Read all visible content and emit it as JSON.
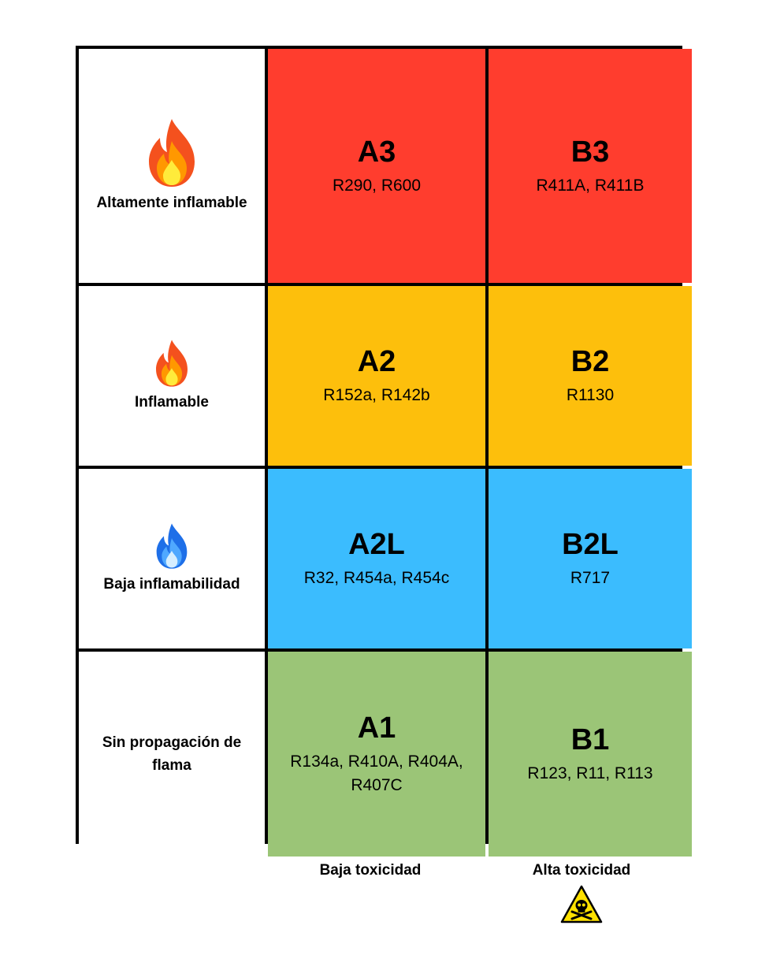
{
  "rows": [
    {
      "label": "Altamente inflamable",
      "icon": "fire-icon-large",
      "cells": [
        {
          "code": "A3",
          "refs": "R290,  R600",
          "color": "#FF3D2E"
        },
        {
          "code": "B3",
          "refs": "R411A, R411B",
          "color": "#FF3D2E"
        }
      ]
    },
    {
      "label": "Inflamable",
      "icon": "fire-icon-small",
      "cells": [
        {
          "code": "A2",
          "refs": "R152a, R142b",
          "color": "#FDBF0C"
        },
        {
          "code": "B2",
          "refs": "R1130",
          "color": "#FDBF0C"
        }
      ]
    },
    {
      "label": "Baja inflamabilidad",
      "icon": "blue-fire-icon",
      "cells": [
        {
          "code": "A2L",
          "refs": "R32, R454a, R454c",
          "color": "#3BBCFE"
        },
        {
          "code": "B2L",
          "refs": "R717",
          "color": "#3BBCFE"
        }
      ]
    },
    {
      "label": "Sin propagación de flama",
      "icon": "",
      "cells": [
        {
          "code": "A1",
          "refs": "R134a, R410A, R404A, R407C",
          "color": "#9BC577"
        },
        {
          "code": "B1",
          "refs": "R123, R11, R113",
          "color": "#9BC577"
        }
      ]
    }
  ],
  "columns": {
    "low": "Baja toxicidad",
    "high": "Alta toxicidad",
    "high_icon": "skull-warning-icon"
  }
}
